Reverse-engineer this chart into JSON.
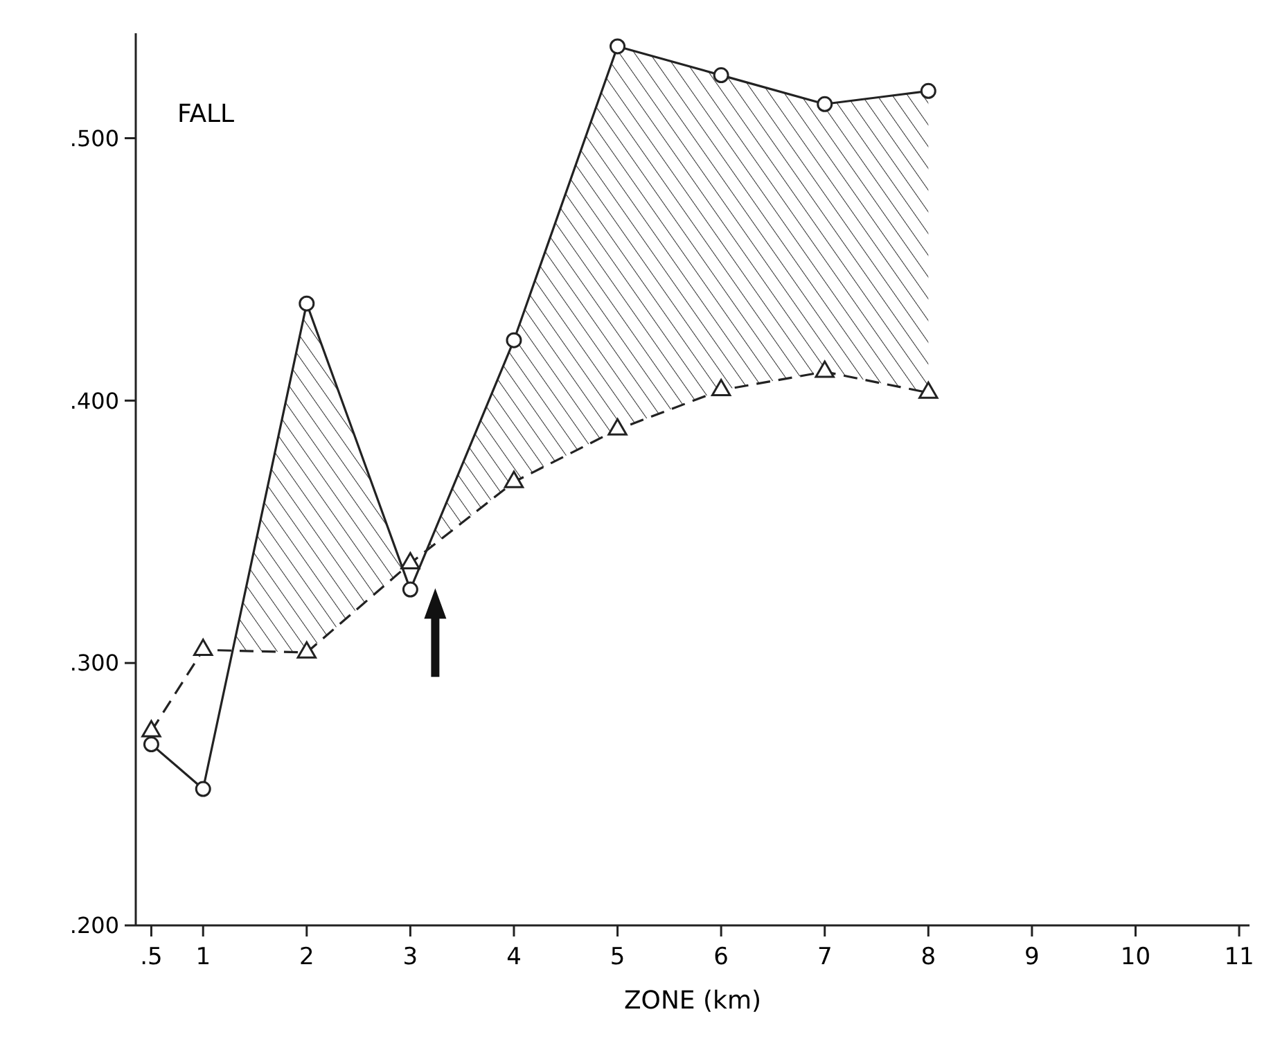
{
  "chart_data": {
    "type": "line",
    "title": "FALL",
    "xlabel": "ZONE (km)",
    "x": [
      0.5,
      1,
      2,
      3,
      4,
      5,
      6,
      7,
      8
    ],
    "xlim": [
      0.35,
      11.1
    ],
    "xticks": [
      {
        "value": 0.5,
        "label": ".5"
      },
      1,
      2,
      3,
      4,
      5,
      6,
      7,
      8,
      9,
      10,
      11
    ],
    "ylim": [
      0.2,
      0.54
    ],
    "yticks": [
      {
        "value": 0.2,
        "label": ".200"
      },
      {
        "value": 0.3,
        "label": ".300"
      },
      {
        "value": 0.4,
        "label": ".400"
      },
      {
        "value": 0.5,
        "label": ".500"
      }
    ],
    "series": [
      {
        "color": "#222222",
        "marker": "circle",
        "line_style": "solid",
        "values": [
          0.269,
          0.252,
          0.437,
          0.328,
          0.423,
          0.535,
          0.524,
          0.513,
          0.518
        ]
      },
      {
        "color": "#222222",
        "marker": "triangle",
        "line_style": "dashed",
        "values": [
          0.274,
          0.305,
          0.304,
          0.338,
          0.369,
          0.389,
          0.404,
          0.411,
          0.403
        ]
      }
    ]
  }
}
